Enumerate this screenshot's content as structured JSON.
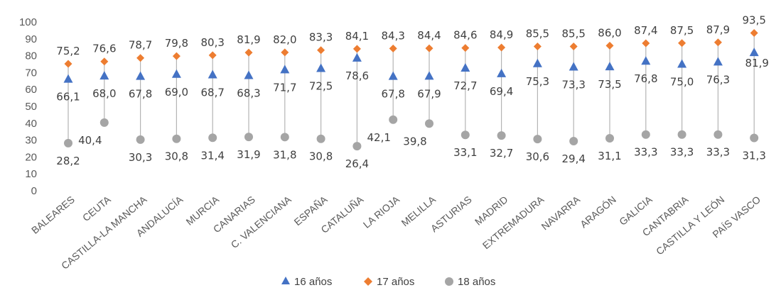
{
  "chart_data": {
    "type": "scatter",
    "ylim": [
      0,
      100
    ],
    "yticks": [
      "0",
      "10",
      "20",
      "30",
      "40",
      "50",
      "60",
      "70",
      "80",
      "90",
      "100"
    ],
    "grid": false,
    "legend_position": "bottom",
    "categories": [
      "BALEARES",
      "CEUTA",
      "CASTILLA-LA MANCHA",
      "ANDALUCÍA",
      "MURCIA",
      "CANARIAS",
      "C. VALENCIANA",
      "ESPAÑA",
      "CATALUÑA",
      "LA RIOJA",
      "MELILLA",
      "ASTURIAS",
      "MADRID",
      "EXTREMADURA",
      "NAVARRA",
      "ARAGÓN",
      "GALICIA",
      "CANTABRIA",
      "CASTILLA Y LEÓN",
      "PAÍS VASCO"
    ],
    "series": [
      {
        "name": "16 años",
        "color": "#4472C4",
        "marker": "triangle",
        "values": [
          66.1,
          68.0,
          67.8,
          69.0,
          68.7,
          68.3,
          71.7,
          72.5,
          78.6,
          67.8,
          67.9,
          72.7,
          69.4,
          75.3,
          73.3,
          73.5,
          76.8,
          75.0,
          76.3,
          81.9
        ],
        "labels": [
          "66,1",
          "68,0",
          "67,8",
          "69,0",
          "68,7",
          "68,3",
          "71,7",
          "72,5",
          "78,6",
          "67,8",
          "67,9",
          "72,7",
          "69,4",
          "75,3",
          "73,3",
          "73,5",
          "76,8",
          "75,0",
          "76,3",
          "81,9"
        ]
      },
      {
        "name": "17 años",
        "color": "#ED7D31",
        "marker": "diamond",
        "values": [
          75.2,
          76.6,
          78.7,
          79.8,
          80.3,
          81.9,
          82.0,
          83.3,
          84.1,
          84.3,
          84.4,
          84.6,
          84.9,
          85.5,
          85.5,
          86.0,
          87.4,
          87.5,
          87.9,
          93.5
        ],
        "labels": [
          "75,2",
          "76,6",
          "78,7",
          "79,8",
          "80,3",
          "81,9",
          "82,0",
          "83,3",
          "84,1",
          "84,3",
          "84,4",
          "84,6",
          "84,9",
          "85,5",
          "85,5",
          "86,0",
          "87,4",
          "87,5",
          "87,9",
          "93,5"
        ]
      },
      {
        "name": "18 años",
        "color": "#A5A5A5",
        "marker": "circle",
        "values": [
          28.2,
          40.4,
          30.3,
          30.8,
          31.4,
          31.9,
          31.8,
          30.8,
          26.4,
          42.1,
          39.8,
          33.1,
          32.7,
          30.6,
          29.4,
          31.1,
          33.3,
          33.3,
          33.3,
          31.3
        ],
        "labels": [
          "28,2",
          "40,4",
          "30,3",
          "30,8",
          "31,4",
          "31,9",
          "31,8",
          "30,8",
          "26,4",
          "42,1",
          "39,8",
          "33,1",
          "32,7",
          "30,6",
          "29,4",
          "31,1",
          "33,3",
          "33,3",
          "33,3",
          "31,3"
        ]
      }
    ]
  }
}
